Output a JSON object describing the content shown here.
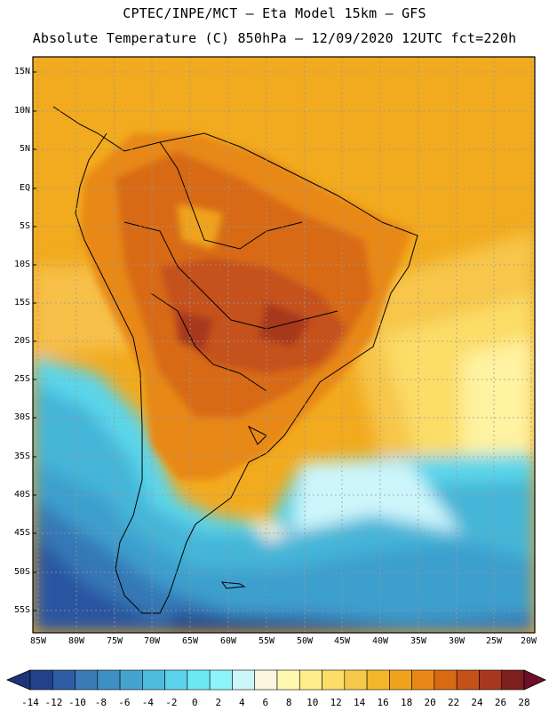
{
  "title_line1": "CPTEC/INPE/MCT –  Eta Model 15km – GFS",
  "title_line2": "Absolute Temperature (C) 850hPa – 12/09/2020 12UTC fct=220h",
  "lat_labels": [
    "15N",
    "10N",
    "5N",
    "EQ",
    "5S",
    "10S",
    "15S",
    "20S",
    "25S",
    "30S",
    "35S",
    "40S",
    "45S",
    "50S",
    "55S"
  ],
  "lon_labels": [
    "85W",
    "80W",
    "75W",
    "70W",
    "65W",
    "60W",
    "55W",
    "50W",
    "45W",
    "40W",
    "35W",
    "30W",
    "25W",
    "20W"
  ],
  "colorbar": {
    "labels": [
      "-14",
      "-12",
      "-10",
      "-8",
      "-6",
      "-4",
      "-2",
      "0",
      "2",
      "4",
      "6",
      "8",
      "10",
      "12",
      "14",
      "16",
      "18",
      "20",
      "22",
      "24",
      "26",
      "28"
    ],
    "colors": [
      "#23418a",
      "#2f5da5",
      "#3a7ab7",
      "#3d8fc4",
      "#45a4cf",
      "#4fbbdd",
      "#5bd3ea",
      "#6ce9f5",
      "#8ef4fb",
      "#cdf6fb",
      "#fdf5de",
      "#fff8b0",
      "#ffee8a",
      "#fbdd68",
      "#f6c94c",
      "#f4b62a",
      "#f0a31c",
      "#e88818",
      "#d86a14",
      "#c5511a",
      "#a8381d",
      "#7d1f1c"
    ],
    "under_color": "#1d3578",
    "over_color": "#6e0f2a"
  }
}
